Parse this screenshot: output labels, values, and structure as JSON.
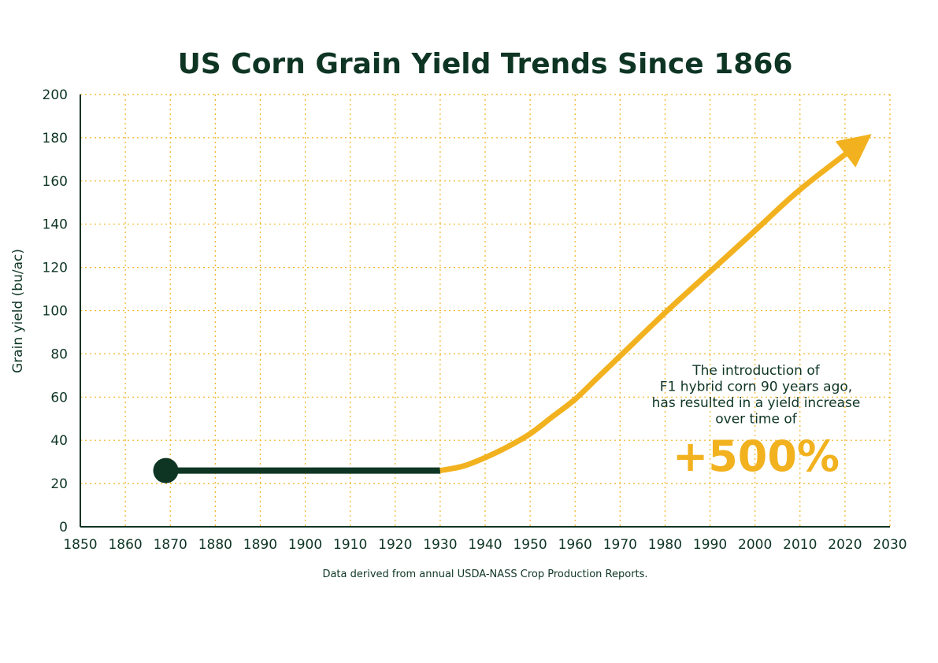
{
  "chart_data": {
    "type": "line",
    "title": "US Corn Grain Yield Trends Since 1866",
    "xlabel": "",
    "ylabel": "Grain yield (bu/ac)",
    "xlim": [
      1850,
      2030
    ],
    "ylim": [
      0,
      200
    ],
    "x_ticks": [
      "1850",
      "1860",
      "1870",
      "1880",
      "1890",
      "1900",
      "1910",
      "1920",
      "1930",
      "1940",
      "1950",
      "1960",
      "1970",
      "1980",
      "1990",
      "2000",
      "2010",
      "2020",
      "2030"
    ],
    "y_ticks": [
      "0",
      "20",
      "40",
      "60",
      "80",
      "100",
      "120",
      "140",
      "160",
      "180",
      "200"
    ],
    "grid": true,
    "series": [
      {
        "color": "#0e3524",
        "start_marker": true,
        "x": [
          1869,
          1930
        ],
        "y": [
          26,
          26
        ]
      },
      {
        "color": "#f2b21f",
        "end_arrow": true,
        "x": [
          1930,
          1935,
          1940,
          1945,
          1950,
          1955,
          1960,
          1965,
          1970,
          1980,
          1990,
          2000,
          2010,
          2023
        ],
        "y": [
          26,
          28,
          32,
          37,
          43,
          51,
          59,
          69,
          79,
          99,
          118,
          137,
          156,
          177
        ]
      }
    ],
    "annotation": {
      "lines": [
        "The introduction of",
        "F1 hybrid corn 90 years ago,",
        "has resulted in a yield increase",
        "over time of"
      ],
      "highlight": "+500%"
    },
    "source": "Data derived from annual USDA-NASS Crop Production Reports."
  }
}
